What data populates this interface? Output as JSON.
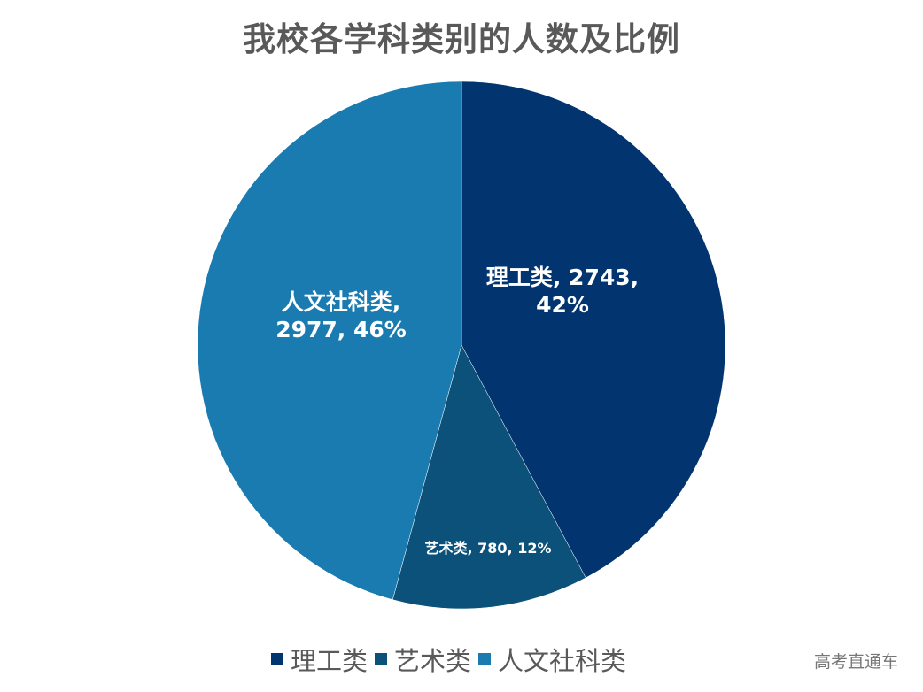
{
  "title": "我校各学科类别的人数及比例",
  "chart_data": {
    "type": "pie",
    "title": "我校各学科类别的人数及比例",
    "categories": [
      "理工类",
      "艺术类",
      "人文社科类"
    ],
    "values": [
      2743,
      780,
      2977
    ],
    "percentages": [
      42,
      12,
      46
    ],
    "colors": [
      "#023570",
      "#0B5179",
      "#1A7BB0"
    ],
    "data_labels": [
      "理工类, 2743, 42%",
      "艺术类, 780, 12%",
      "人文社科类, 2977, 46%"
    ],
    "legend_position": "bottom",
    "start_angle_deg": 0,
    "direction": "clockwise"
  },
  "labels": {
    "l1_line1": "理工类, 2743,",
    "l1_line2": "42%",
    "l2": "艺术类, 780, 12%",
    "l3_line1": "人文社科类,",
    "l3_line2": "2977, 46%"
  },
  "legend": [
    {
      "label": "理工类",
      "color": "#023570"
    },
    {
      "label": "艺术类",
      "color": "#0B5179"
    },
    {
      "label": "人文社科类",
      "color": "#1A7BB0"
    }
  ],
  "watermark": "高考直通车"
}
